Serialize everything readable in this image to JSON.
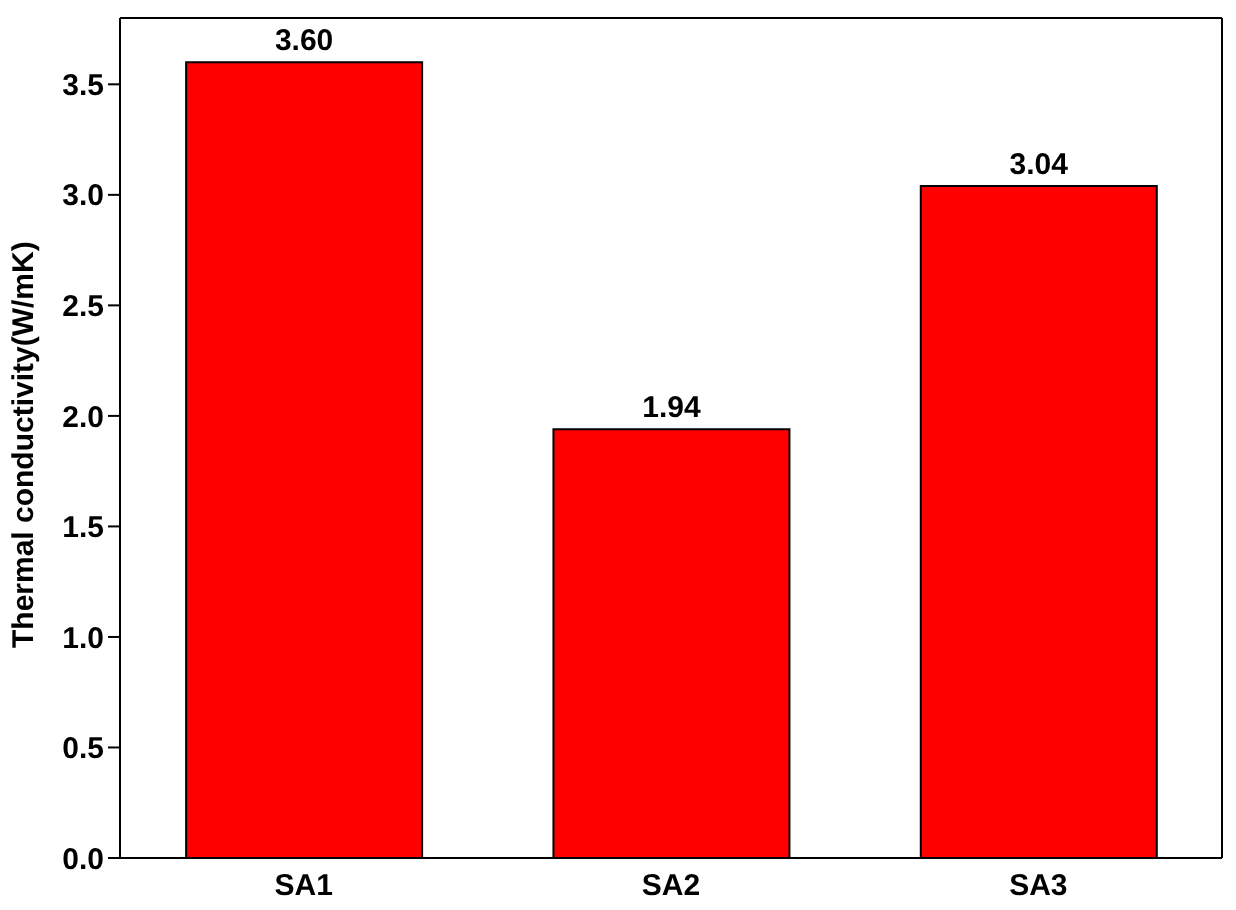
{
  "chart_data": {
    "type": "bar",
    "ylabel": "Thermal conductivity(W/mK)",
    "categories": [
      "SA1",
      "SA2",
      "SA3"
    ],
    "values": [
      3.6,
      1.94,
      3.04
    ],
    "color": "#ff0000",
    "ylim": [
      0,
      3.8
    ],
    "yticks": [
      {
        "value": 0,
        "label": "0.0"
      },
      {
        "value": 0.5,
        "label": "0.5"
      },
      {
        "value": 1,
        "label": "1.0"
      },
      {
        "value": 1.5,
        "label": "1.5"
      },
      {
        "value": 2,
        "label": "2.0"
      },
      {
        "value": 2.5,
        "label": "2.5"
      },
      {
        "value": 3,
        "label": "3.0"
      },
      {
        "value": 3.5,
        "label": "3.5"
      }
    ],
    "value_labels": [
      "3.60",
      "1.94",
      "3.04"
    ],
    "grid": false,
    "legend": false
  }
}
